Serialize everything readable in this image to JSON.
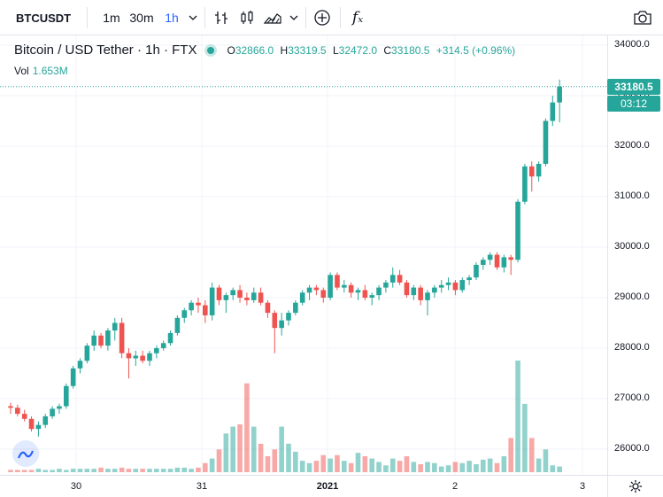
{
  "toolbar": {
    "symbol": "BTCUSDT",
    "timeframes": [
      "1m",
      "30m",
      "1h"
    ],
    "active_timeframe": "1h",
    "fx_label": "fₓ"
  },
  "legend": {
    "title": "Bitcoin / USD Tether · 1h · FTX",
    "open_label": "O",
    "open": "32866.0",
    "high_label": "H",
    "high": "33319.5",
    "low_label": "L",
    "low": "32472.0",
    "close_label": "C",
    "close": "33180.5",
    "change": "+314.5 (+0.96%)",
    "vol_label": "Vol",
    "vol_value": "1.653M"
  },
  "price_axis": {
    "ticks": [
      "34000.0",
      "33000.0",
      "32000.0",
      "31000.0",
      "30000.0",
      "29000.0",
      "28000.0",
      "27000.0",
      "26000.0"
    ],
    "last_price": "33180.5",
    "countdown": "03:12"
  },
  "time_axis": {
    "ticks": [
      "30",
      "31",
      "2021",
      "2",
      "3"
    ]
  },
  "colors": {
    "up": "#26a69a",
    "down": "#ef5350",
    "accent": "#2962ff"
  },
  "chart_data": {
    "type": "candlestick",
    "ylim": [
      25500,
      34300
    ],
    "candles": [
      [
        26850,
        26920,
        26700,
        26820
      ],
      [
        26820,
        26880,
        26650,
        26700
      ],
      [
        26700,
        26780,
        26550,
        26600
      ],
      [
        26600,
        26650,
        26350,
        26400
      ],
      [
        26400,
        26550,
        26250,
        26480
      ],
      [
        26480,
        26700,
        26420,
        26650
      ],
      [
        26650,
        26850,
        26600,
        26800
      ],
      [
        26800,
        26900,
        26700,
        26850
      ],
      [
        26850,
        27300,
        26800,
        27250
      ],
      [
        27250,
        27650,
        27200,
        27600
      ],
      [
        27600,
        27800,
        27500,
        27750
      ],
      [
        27750,
        28100,
        27700,
        28050
      ],
      [
        28050,
        28350,
        27950,
        28250
      ],
      [
        28250,
        28300,
        28000,
        28050
      ],
      [
        28050,
        28400,
        27950,
        28350
      ],
      [
        28350,
        28600,
        28150,
        28500
      ],
      [
        28500,
        28600,
        27800,
        27900
      ],
      [
        27900,
        28000,
        27400,
        27800
      ],
      [
        27800,
        27950,
        27650,
        27850
      ],
      [
        27850,
        27950,
        27700,
        27750
      ],
      [
        27750,
        27950,
        27650,
        27900
      ],
      [
        27900,
        28050,
        27800,
        28000
      ],
      [
        28000,
        28150,
        27950,
        28100
      ],
      [
        28100,
        28350,
        28050,
        28300
      ],
      [
        28300,
        28650,
        28250,
        28600
      ],
      [
        28600,
        28800,
        28500,
        28750
      ],
      [
        28750,
        28950,
        28650,
        28900
      ],
      [
        28900,
        29000,
        28700,
        28850
      ],
      [
        28850,
        28950,
        28500,
        28650
      ],
      [
        28650,
        29300,
        28550,
        29200
      ],
      [
        29200,
        29250,
        28850,
        28950
      ],
      [
        28950,
        29100,
        28700,
        29050
      ],
      [
        29050,
        29200,
        28950,
        29150
      ],
      [
        29150,
        29250,
        28900,
        29000
      ],
      [
        29000,
        29100,
        28850,
        28950
      ],
      [
        28950,
        29200,
        28900,
        29100
      ],
      [
        29100,
        29200,
        28850,
        28900
      ],
      [
        28900,
        28950,
        28600,
        28700
      ],
      [
        28700,
        28750,
        27900,
        28400
      ],
      [
        28400,
        28700,
        28250,
        28550
      ],
      [
        28550,
        28750,
        28450,
        28700
      ],
      [
        28700,
        28950,
        28650,
        28900
      ],
      [
        28900,
        29150,
        28850,
        29100
      ],
      [
        29100,
        29250,
        28950,
        29200
      ],
      [
        29200,
        29250,
        29050,
        29150
      ],
      [
        29150,
        29200,
        28900,
        29000
      ],
      [
        29000,
        29500,
        28950,
        29450
      ],
      [
        29450,
        29500,
        29150,
        29200
      ],
      [
        29200,
        29350,
        29100,
        29250
      ],
      [
        29250,
        29300,
        29000,
        29100
      ],
      [
        29100,
        29200,
        28950,
        29150
      ],
      [
        29150,
        29250,
        28950,
        29000
      ],
      [
        29000,
        29100,
        28850,
        29050
      ],
      [
        29050,
        29250,
        28950,
        29200
      ],
      [
        29200,
        29350,
        29100,
        29300
      ],
      [
        29300,
        29600,
        29200,
        29450
      ],
      [
        29450,
        29550,
        29250,
        29300
      ],
      [
        29300,
        29350,
        29000,
        29050
      ],
      [
        29050,
        29250,
        28950,
        29200
      ],
      [
        29200,
        29250,
        28850,
        28950
      ],
      [
        28950,
        29150,
        28650,
        29100
      ],
      [
        29100,
        29250,
        29000,
        29200
      ],
      [
        29200,
        29350,
        29100,
        29250
      ],
      [
        29250,
        29400,
        29150,
        29300
      ],
      [
        29300,
        29350,
        29050,
        29150
      ],
      [
        29150,
        29400,
        29100,
        29350
      ],
      [
        29350,
        29450,
        29250,
        29400
      ],
      [
        29400,
        29700,
        29350,
        29650
      ],
      [
        29650,
        29800,
        29550,
        29750
      ],
      [
        29750,
        29900,
        29650,
        29850
      ],
      [
        29850,
        29900,
        29550,
        29600
      ],
      [
        29600,
        29850,
        29500,
        29800
      ],
      [
        29800,
        29850,
        29450,
        29750
      ],
      [
        29750,
        30950,
        29700,
        30900
      ],
      [
        30900,
        31650,
        30850,
        31600
      ],
      [
        31600,
        31700,
        31100,
        31400
      ],
      [
        31400,
        31700,
        31300,
        31650
      ],
      [
        31650,
        32550,
        31600,
        32500
      ],
      [
        32500,
        33000,
        32400,
        32866
      ],
      [
        32866,
        33319.5,
        32472,
        33180.5
      ]
    ],
    "volumes": [
      2,
      2,
      2,
      2,
      3,
      2,
      2,
      3,
      2,
      3,
      3,
      3,
      3,
      4,
      3,
      3,
      4,
      3,
      3,
      3,
      3,
      3,
      3,
      3,
      4,
      4,
      3,
      4,
      8,
      12,
      20,
      34,
      40,
      42,
      78,
      40,
      25,
      14,
      20,
      40,
      25,
      18,
      10,
      8,
      10,
      15,
      12,
      15,
      10,
      8,
      17,
      14,
      12,
      9,
      6,
      12,
      10,
      14,
      9,
      7,
      9,
      8,
      5,
      6,
      9,
      8,
      10,
      7,
      11,
      12,
      8,
      14,
      30,
      98,
      60,
      30,
      12,
      20,
      6,
      5
    ]
  }
}
